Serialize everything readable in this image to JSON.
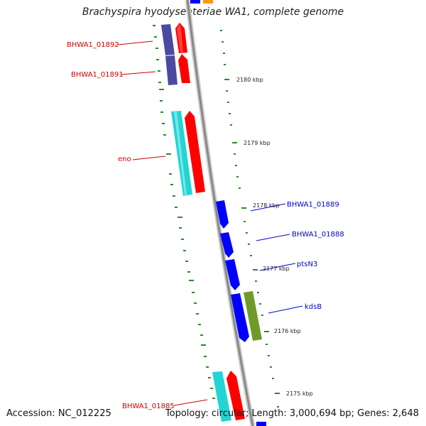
{
  "title": "Brachyspira hyodysenteriae WA1, complete genome",
  "accession": "Accession: NC_012225",
  "topology": "Topology: circular; Length: 3,000,694 bp; Genes: 2,648",
  "ticks": [
    {
      "label": "2180 kbp"
    },
    {
      "label": "2179 kbp"
    },
    {
      "label": "2178 kbp"
    },
    {
      "label": "2177 kbp"
    },
    {
      "label": "2176 kbp"
    },
    {
      "label": "2175 kbp"
    }
  ],
  "genes": [
    {
      "name": "BHWA1_01892",
      "strand": "minus"
    },
    {
      "name": "BHWA1_01891",
      "strand": "minus"
    },
    {
      "name": "eno",
      "strand": "minus"
    },
    {
      "name": "BHWA1_01889",
      "strand": "plus"
    },
    {
      "name": "BHWA1_01888",
      "strand": "plus"
    },
    {
      "name": "ptsN3",
      "strand": "plus"
    },
    {
      "name": "kdsB",
      "strand": "plus"
    },
    {
      "name": "BHWA1_01885",
      "strand": "minus"
    }
  ],
  "colors": {
    "backbone": "#8a8a8a",
    "tick": "#2a8a2a",
    "minus_label": "#cc0000",
    "plus_label": "#0000cc",
    "cds_red": "#ff0000",
    "cds_cyan": "#22d4d4",
    "cds_navy": "#4a4aa0",
    "cds_blue": "#0000ff",
    "cds_olive": "#6f9a2a",
    "cds_orange": "#ff9900"
  }
}
